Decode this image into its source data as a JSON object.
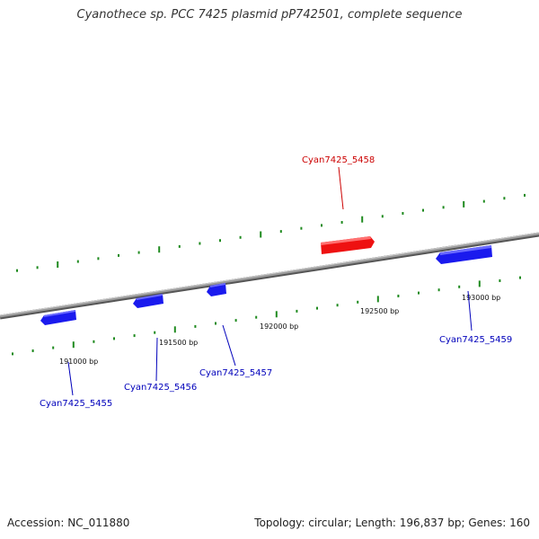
{
  "title": "Cyanothece sp. PCC 7425 plasmid pP742501, complete sequence",
  "footer": {
    "accession": "Accession: NC_011880",
    "summary": "Topology: circular; Length: 196,837 bp; Genes: 160"
  },
  "colors": {
    "backbone": "#8a8a8a",
    "tick": "#1f8a1f",
    "forward_gene": "#ee1111",
    "reverse_gene": "#1a1aee",
    "forward_label": "#cc0000",
    "reverse_label": "#0000bb"
  },
  "scale_labels": [
    {
      "label": "191000 bp",
      "bp": 191000
    },
    {
      "label": "191500 bp",
      "bp": 191500
    },
    {
      "label": "192000 bp",
      "bp": 192000
    },
    {
      "label": "192500 bp",
      "bp": 192500
    },
    {
      "label": "193000 bp",
      "bp": 193000
    }
  ],
  "genes": [
    {
      "name": "Cyan7425_5455",
      "strand": "reverse"
    },
    {
      "name": "Cyan7425_5456",
      "strand": "reverse"
    },
    {
      "name": "Cyan7425_5457",
      "strand": "reverse"
    },
    {
      "name": "Cyan7425_5458",
      "strand": "forward"
    },
    {
      "name": "Cyan7425_5459",
      "strand": "reverse"
    }
  ]
}
